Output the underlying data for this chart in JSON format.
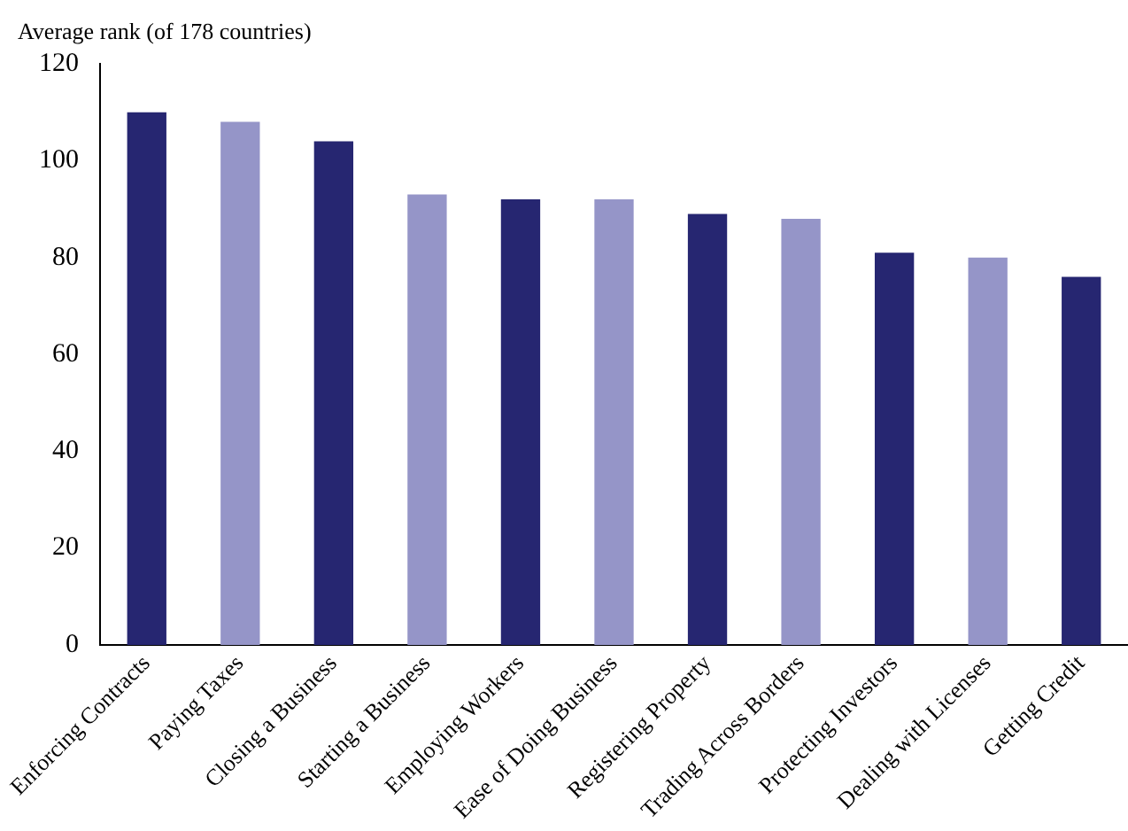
{
  "chart_data": {
    "type": "bar",
    "ylabel": "Average rank (of 178 countries)",
    "categories": [
      "Enforcing Contracts",
      "Paying Taxes",
      "Closing a Business",
      "Starting a Business",
      "Employing Workers",
      "Ease of Doing Business",
      "Registering Property",
      "Trading Across Borders",
      "Protecting Investors",
      "Dealing with Licenses",
      "Getting Credit"
    ],
    "values": [
      110,
      108,
      104,
      93,
      92,
      92,
      89,
      88,
      81,
      80,
      76
    ],
    "colors": [
      "#262671",
      "#9595c8",
      "#262671",
      "#9595c8",
      "#262671",
      "#9595c8",
      "#262671",
      "#9595c8",
      "#262671",
      "#9595c8",
      "#262671"
    ],
    "ylim": [
      0,
      120
    ],
    "yticks": [
      0,
      20,
      40,
      60,
      80,
      100,
      120
    ],
    "grid": false,
    "legend": false
  }
}
